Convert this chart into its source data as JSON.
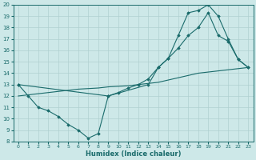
{
  "xlabel": "Humidex (Indice chaleur)",
  "xlim": [
    -0.5,
    23.5
  ],
  "ylim": [
    8,
    20
  ],
  "xticks": [
    0,
    1,
    2,
    3,
    4,
    5,
    6,
    7,
    8,
    9,
    10,
    11,
    12,
    13,
    14,
    15,
    16,
    17,
    18,
    19,
    20,
    21,
    22,
    23
  ],
  "yticks": [
    8,
    9,
    10,
    11,
    12,
    13,
    14,
    15,
    16,
    17,
    18,
    19,
    20
  ],
  "bg_color": "#cde8e8",
  "grid_color": "#b0d0d0",
  "line_color": "#1a6b6b",
  "line1_x": [
    0,
    1,
    2,
    3,
    4,
    5,
    6,
    7,
    8,
    9,
    10,
    11,
    12,
    13,
    14,
    15,
    16,
    17,
    18,
    19,
    20,
    21,
    22,
    23
  ],
  "line1_y": [
    13,
    12,
    11,
    10.7,
    10.2,
    9.5,
    9.0,
    8.3,
    8.7,
    12.0,
    12.3,
    12.7,
    13.0,
    13.5,
    14.5,
    15.3,
    16.2,
    17.3,
    18.0,
    19.3,
    17.3,
    16.8,
    15.2,
    14.5
  ],
  "line2_x": [
    0,
    1,
    2,
    3,
    4,
    5,
    6,
    7,
    8,
    9,
    10,
    11,
    12,
    13,
    14,
    15,
    16,
    17,
    18,
    19,
    20,
    21,
    22,
    23
  ],
  "line2_y": [
    12.0,
    12.1,
    12.2,
    12.3,
    12.4,
    12.5,
    12.6,
    12.65,
    12.7,
    12.8,
    12.85,
    12.9,
    13.0,
    13.1,
    13.2,
    13.4,
    13.6,
    13.8,
    14.0,
    14.1,
    14.2,
    14.3,
    14.4,
    14.5
  ],
  "line3_x": [
    0,
    9,
    13,
    14,
    15,
    16,
    17,
    18,
    19,
    20,
    21,
    22,
    23
  ],
  "line3_y": [
    13,
    12.0,
    13.0,
    14.5,
    15.3,
    17.3,
    19.3,
    19.5,
    20.0,
    19.0,
    17.0,
    15.2,
    14.5
  ]
}
